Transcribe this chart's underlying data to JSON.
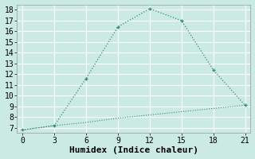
{
  "title": "",
  "xlabel": "Humidex (Indice chaleur)",
  "ylabel": "",
  "background_color": "#cceae4",
  "grid_color": "#ffffff",
  "line_color": "#2e8b7a",
  "xlim": [
    -0.5,
    21.5
  ],
  "ylim": [
    6.5,
    18.5
  ],
  "xticks": [
    0,
    3,
    6,
    9,
    12,
    15,
    18,
    21
  ],
  "yticks": [
    7,
    8,
    9,
    10,
    11,
    12,
    13,
    14,
    15,
    16,
    17,
    18
  ],
  "line1_x": [
    0,
    3,
    6,
    9,
    12,
    15,
    18,
    21
  ],
  "line1_y": [
    6.8,
    7.2,
    11.6,
    16.4,
    18.1,
    17.0,
    12.4,
    9.1
  ],
  "line2_x": [
    0,
    3,
    6,
    9,
    12,
    15,
    18,
    21
  ],
  "line2_y": [
    6.8,
    7.2,
    7.5,
    7.9,
    8.2,
    8.5,
    8.8,
    9.1
  ],
  "marker_size": 3.5,
  "font_family": "monospace",
  "tick_fontsize": 7,
  "xlabel_fontsize": 8
}
